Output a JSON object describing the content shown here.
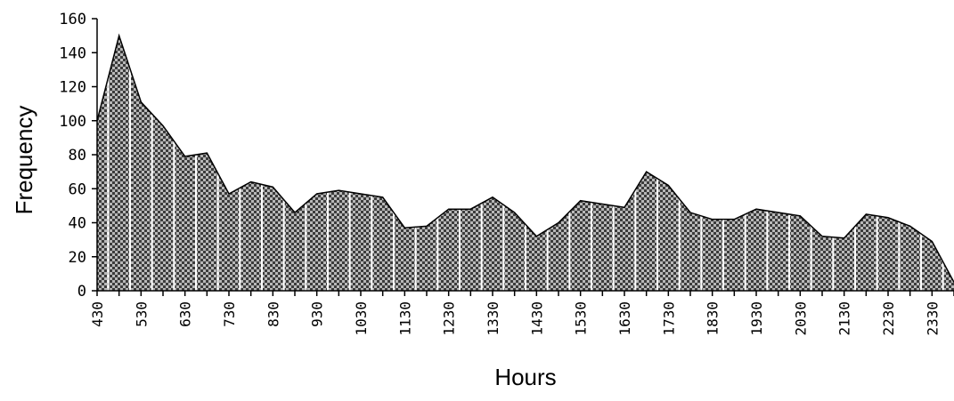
{
  "chart_data": {
    "type": "area",
    "xlabel": "Hours",
    "ylabel": "Frequency",
    "ylim": [
      0,
      160
    ],
    "yticks": [
      0,
      20,
      40,
      60,
      80,
      100,
      120,
      140,
      160
    ],
    "grid": false,
    "legend": "none",
    "x_tick_labels": [
      "430",
      "530",
      "630",
      "730",
      "830",
      "930",
      "1030",
      "1130",
      "1230",
      "1330",
      "1430",
      "1530",
      "1630",
      "1730",
      "1830",
      "1930",
      "2030",
      "2130",
      "2230",
      "2330"
    ],
    "x": [
      "430",
      "500",
      "530",
      "600",
      "630",
      "700",
      "730",
      "800",
      "830",
      "900",
      "930",
      "1000",
      "1030",
      "1100",
      "1130",
      "1200",
      "1230",
      "1300",
      "1330",
      "1400",
      "1430",
      "1500",
      "1530",
      "1600",
      "1630",
      "1700",
      "1730",
      "1800",
      "1830",
      "1900",
      "1930",
      "2000",
      "2030",
      "2100",
      "2130",
      "2200",
      "2230",
      "2300",
      "2330",
      "2400"
    ],
    "series": [
      {
        "values": [
          100,
          150,
          111,
          97,
          79,
          81,
          57,
          64,
          61,
          46,
          57,
          59,
          57,
          55,
          37,
          38,
          48,
          48,
          55,
          46,
          32,
          40,
          53,
          51,
          49,
          70,
          62,
          46,
          42,
          42,
          48,
          46,
          44,
          32,
          31,
          45,
          43,
          38,
          29,
          5
        ],
        "fill": "#8c8c8c",
        "pattern": "checker-dots"
      }
    ]
  }
}
